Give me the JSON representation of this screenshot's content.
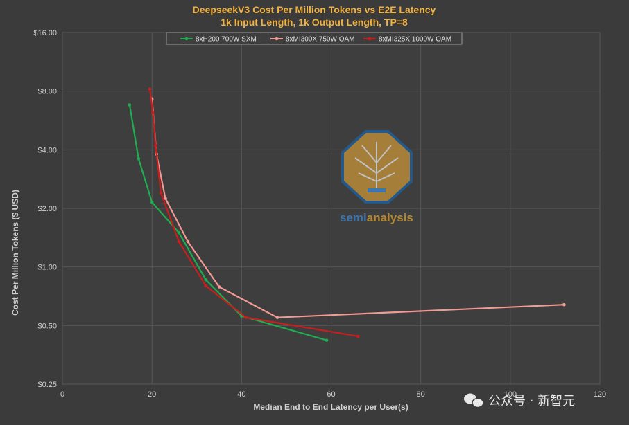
{
  "chart_data": {
    "type": "line",
    "title_line1": "DeepseekV3  Cost Per Million Tokens vs E2E Latency",
    "title_line2": "1k Input Length, 1k Output Length, TP=8",
    "xlabel": "Median End to End Latency per User(s)",
    "ylabel": "Cost Per Million Tokens ($ USD)",
    "xlim": [
      0,
      120
    ],
    "ylim": [
      0.25,
      16
    ],
    "y_scale": "log2",
    "x_ticks": [
      0,
      20,
      40,
      60,
      80,
      100,
      120
    ],
    "y_ticks": [
      {
        "value": 0.25,
        "label": "$0.25"
      },
      {
        "value": 0.5,
        "label": "$0.50"
      },
      {
        "value": 1,
        "label": "$1.00"
      },
      {
        "value": 2,
        "label": "$2.00"
      },
      {
        "value": 4,
        "label": "$4.00"
      },
      {
        "value": 8,
        "label": "$8.00"
      },
      {
        "value": 16,
        "label": "$16.00"
      }
    ],
    "grid": true,
    "legend_position": "top",
    "series": [
      {
        "name": "8xH200 700W SXM",
        "color": "#1fae4f",
        "x": [
          15,
          17,
          20,
          26,
          32,
          40,
          59
        ],
        "y": [
          6.8,
          3.6,
          2.15,
          1.5,
          0.86,
          0.56,
          0.42
        ]
      },
      {
        "name": "8xMI300X 750W OAM",
        "color": "#f29a94",
        "x": [
          20,
          21,
          23,
          28,
          35,
          48,
          112
        ],
        "y": [
          7.3,
          3.8,
          2.25,
          1.35,
          0.79,
          0.55,
          0.64
        ]
      },
      {
        "name": "8xMI325X 1000W OAM",
        "color": "#c81e1e",
        "x": [
          19.5,
          20.2,
          20.8,
          22,
          26,
          32,
          41,
          66
        ],
        "y": [
          8.2,
          6.2,
          4.2,
          2.4,
          1.35,
          0.8,
          0.55,
          0.44
        ]
      }
    ]
  },
  "watermark": {
    "logo_text_semi": "semi",
    "logo_text_analysis": "analysis",
    "credit": "公众号 · 新智元"
  }
}
